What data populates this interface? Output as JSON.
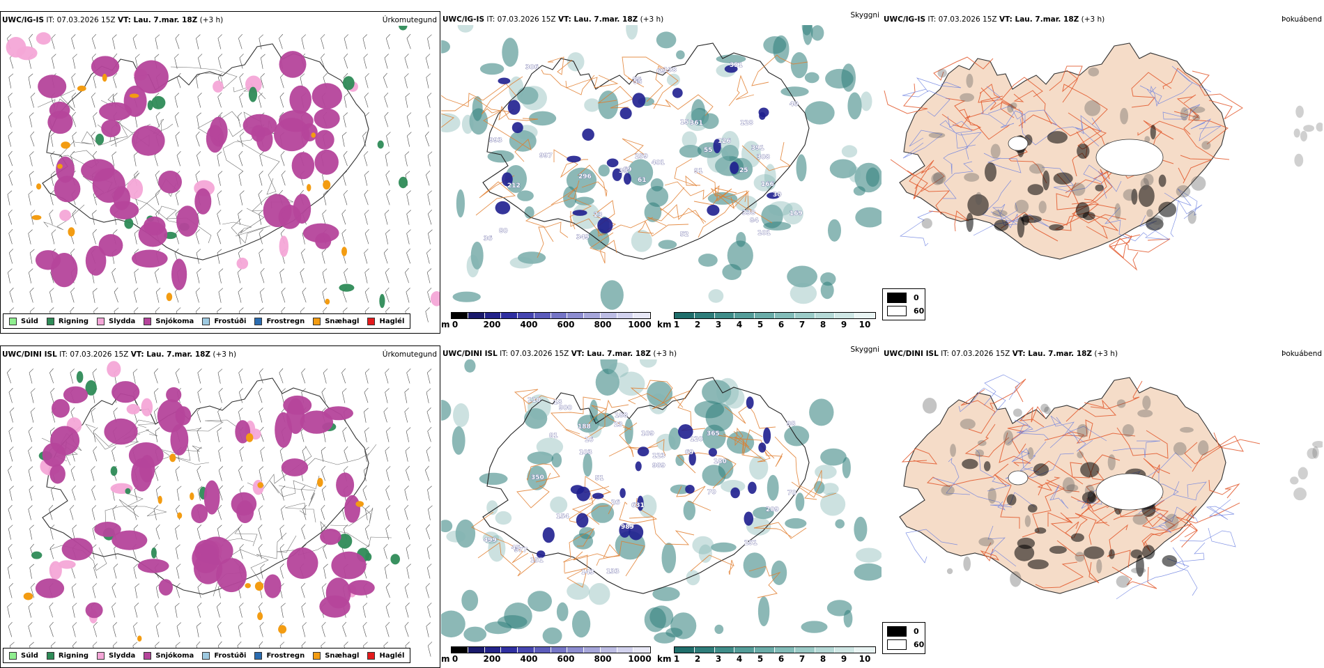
{
  "rows": [
    {
      "model_short": "UWC/IG-IS",
      "model_full": "UWC/IG-IS",
      "it_label": " IT: 07.03.2026 15Z ",
      "vt_label": "VT: Lau. 7.mar. 18Z",
      "lead": " (+3 h)",
      "precip_title": "Úrkomutegund",
      "cloud_title": "Skyggni",
      "fog_title": "Þokuábendi",
      "cloud_labels": [
        "993",
        "30",
        "69",
        "40",
        "15",
        "349",
        "391",
        "52",
        "25",
        "198",
        "30",
        "69",
        "61",
        "101",
        "128",
        "296",
        "23",
        "401",
        "997",
        "166",
        "55",
        "80",
        "361",
        "169",
        "306",
        "91",
        "36",
        "55",
        "351",
        "308",
        "259",
        "84",
        "212",
        "55",
        "338",
        "126"
      ]
    },
    {
      "model_short": "UWC/DINI ISL",
      "model_full": "UWC/DINI ISL",
      "it_label": " IT: 07.03.2026 15Z ",
      "vt_label": "VT: Lau. 7.mar. 18Z",
      "lead": " (+3 h)",
      "precip_title": "Úrkomutegund",
      "cloud_title": "Skyggni",
      "fog_title": "Þokuábendi",
      "cloud_labels": [
        "143",
        "151",
        "188",
        "631",
        "377",
        "180",
        "18",
        "16",
        "23",
        "81",
        "251",
        "110",
        "70",
        "123",
        "154",
        "365",
        "989",
        "350",
        "900",
        "209",
        "120",
        "69",
        "103",
        "26",
        "133",
        "51",
        "499",
        "989",
        "70",
        "109",
        "188",
        "45",
        "98"
      ]
    }
  ],
  "precip_legend": [
    {
      "label": "Súld",
      "color": "#90ee90"
    },
    {
      "label": "Rigning",
      "color": "#2e8b57"
    },
    {
      "label": "Slydda",
      "color": "#f4a6d7"
    },
    {
      "label": "Snjókoma",
      "color": "#b5449b"
    },
    {
      "label": "Frostúði",
      "color": "#9ecae1"
    },
    {
      "label": "Frostregn",
      "color": "#2b6cb0"
    },
    {
      "label": "Snæhagl",
      "color": "#f39c12"
    },
    {
      "label": "Haglél",
      "color": "#e41a1c"
    }
  ],
  "cloud_base_bar": {
    "unit": "m",
    "ticks": [
      "0",
      "200",
      "400",
      "600",
      "800",
      "1000"
    ]
  },
  "visibility_bar": {
    "unit": "km",
    "ticks": [
      "1",
      "2",
      "3",
      "4",
      "5",
      "6",
      "7",
      "8",
      "9",
      "10"
    ]
  },
  "fog_legend": {
    "black": "0",
    "white": "60"
  },
  "colors": {
    "snow": "#b5449b",
    "rain": "#2e8b57",
    "sleet": "#f4a6d7",
    "graupel": "#f39c12",
    "teal": "#2e7d7a",
    "navy": "#1f1f8f",
    "land": "#f5dcc8",
    "road": "#e2572a",
    "water": "#6a7fe0"
  }
}
